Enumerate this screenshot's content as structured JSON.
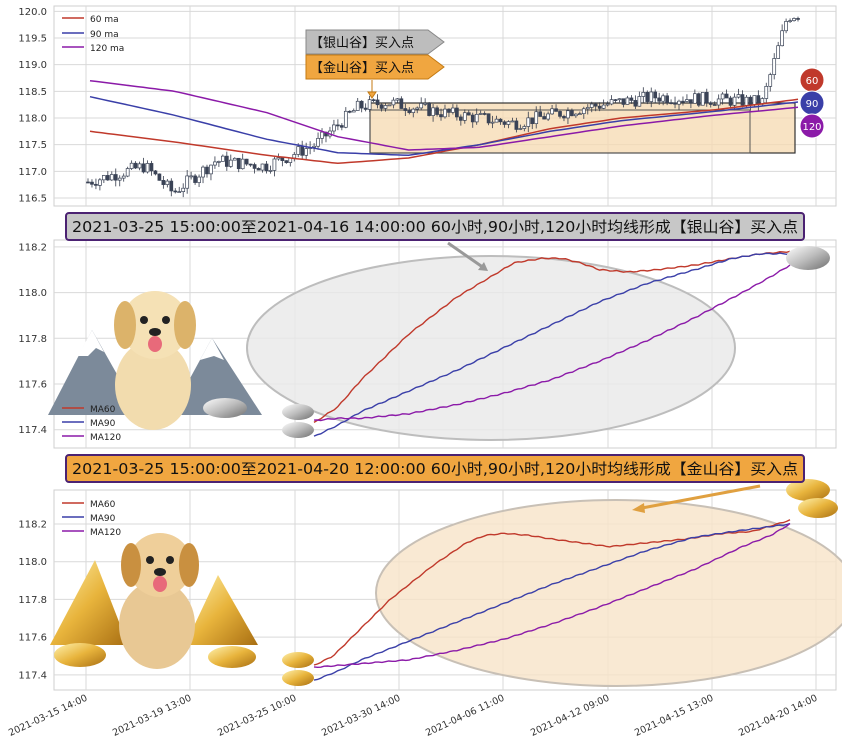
{
  "chart_data": [
    {
      "type": "candlestick",
      "ylim": [
        116.35,
        120.1
      ],
      "yticks": [
        "116.5",
        "117.0",
        "117.5",
        "118.0",
        "118.5",
        "119.0",
        "119.5",
        "120.0"
      ],
      "legend": [
        "60 ma",
        "90 ma",
        "120 ma"
      ],
      "tags": {
        "silver": "【银山谷】买入点",
        "gold": "【金山谷】买入点"
      },
      "badges": [
        "60",
        "90",
        "120"
      ],
      "series_start": [
        {
          "name": "60 ma",
          "start": 117.75,
          "end": 118.35
        },
        {
          "name": "90 ma",
          "start": 118.4,
          "end": 118.3
        },
        {
          "name": "120 ma",
          "start": 118.7,
          "end": 118.2
        }
      ]
    },
    {
      "type": "line",
      "title": "2021-03-25 15:00:00至2021-04-16 14:00:00 60小时,90小时,120小时均线形成【银山谷】买入点",
      "ylim": [
        117.32,
        118.23
      ],
      "yticks": [
        "117.4",
        "117.6",
        "117.8",
        "118.0",
        "118.2"
      ],
      "series": [
        {
          "name": "MA60",
          "x": [
            0,
            0.05,
            0.1,
            0.2,
            0.3,
            0.38,
            0.42,
            0.48,
            0.52,
            0.56,
            0.6,
            0.66,
            0.72,
            0.8,
            0.88,
            0.94,
            1.0
          ],
          "values": [
            117.43,
            117.5,
            117.62,
            117.82,
            117.98,
            118.08,
            118.13,
            118.15,
            118.15,
            118.13,
            118.1,
            118.09,
            118.1,
            118.12,
            118.15,
            118.17,
            118.18
          ]
        },
        {
          "name": "MA90",
          "x": [
            0,
            0.05,
            0.1,
            0.2,
            0.3,
            0.4,
            0.5,
            0.6,
            0.7,
            0.8,
            0.88,
            0.94,
            1.0
          ],
          "values": [
            117.37,
            117.42,
            117.48,
            117.57,
            117.66,
            117.76,
            117.86,
            117.96,
            118.04,
            118.1,
            118.15,
            118.17,
            118.17
          ]
        },
        {
          "name": "MA120",
          "x": [
            0,
            0.05,
            0.1,
            0.2,
            0.3,
            0.4,
            0.5,
            0.6,
            0.7,
            0.8,
            0.9,
            0.96,
            1.0
          ],
          "values": [
            117.44,
            117.45,
            117.45,
            117.47,
            117.51,
            117.56,
            117.62,
            117.7,
            117.79,
            117.89,
            118.0,
            118.07,
            118.12
          ]
        }
      ],
      "legend": [
        "MA60",
        "MA90",
        "MA120"
      ]
    },
    {
      "type": "line",
      "title": "2021-03-25 15:00:00至2021-04-20 12:00:00 60小时,90小时,120小时均线形成【金山谷】买入点",
      "ylim": [
        117.32,
        118.38
      ],
      "yticks": [
        "117.4",
        "117.6",
        "117.8",
        "118.0",
        "118.2"
      ],
      "xticks": [
        "2021-03-15 14:00",
        "2021-03-19 13:00",
        "2021-03-25 10:00",
        "2021-03-30 14:00",
        "2021-04-06 11:00",
        "2021-04-12 09:00",
        "2021-04-15 13:00",
        "2021-04-20 14:00"
      ],
      "series": [
        {
          "name": "MA60",
          "x": [
            0,
            0.04,
            0.08,
            0.16,
            0.25,
            0.32,
            0.36,
            0.4,
            0.45,
            0.5,
            0.56,
            0.62,
            0.7,
            0.78,
            0.86,
            0.92,
            1.0
          ],
          "values": [
            117.45,
            117.5,
            117.6,
            117.8,
            117.98,
            118.1,
            118.14,
            118.15,
            118.14,
            118.12,
            118.1,
            118.08,
            118.1,
            118.12,
            118.15,
            118.16,
            118.22
          ]
        },
        {
          "name": "MA90",
          "x": [
            0,
            0.05,
            0.1,
            0.2,
            0.3,
            0.4,
            0.5,
            0.6,
            0.7,
            0.8,
            0.88,
            0.94,
            1.0
          ],
          "values": [
            117.37,
            117.42,
            117.48,
            117.58,
            117.68,
            117.78,
            117.88,
            117.97,
            118.06,
            118.13,
            118.16,
            118.18,
            118.2
          ]
        },
        {
          "name": "MA120",
          "x": [
            0,
            0.05,
            0.1,
            0.2,
            0.3,
            0.4,
            0.5,
            0.6,
            0.7,
            0.8,
            0.9,
            0.96,
            1.0
          ],
          "values": [
            117.44,
            117.45,
            117.46,
            117.48,
            117.53,
            117.59,
            117.67,
            117.76,
            117.86,
            117.96,
            118.08,
            118.14,
            118.2
          ]
        }
      ],
      "legend": [
        "MA60",
        "MA90",
        "MA120"
      ]
    }
  ],
  "colors": {
    "ma60": "#c0392b",
    "ma90": "#3a3fa8",
    "ma120": "#8b1aa8",
    "silver_banner": "#c7c7c7",
    "gold_banner": "#f0a640"
  }
}
